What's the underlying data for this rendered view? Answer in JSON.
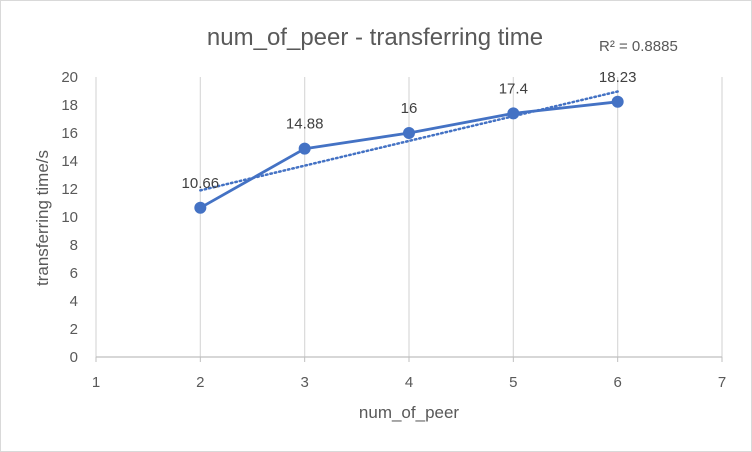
{
  "chart_data": {
    "type": "line",
    "title": "num_of_peer - transferring time",
    "xlabel": "num_of_peer",
    "ylabel": "transferring time/s",
    "xlim": [
      1,
      7
    ],
    "ylim": [
      0,
      20
    ],
    "x_ticks": [
      1,
      2,
      3,
      4,
      5,
      6,
      7
    ],
    "y_ticks": [
      0,
      2,
      4,
      6,
      8,
      10,
      12,
      14,
      16,
      18,
      20
    ],
    "grid": "vertical",
    "legend": "none",
    "series": [
      {
        "x": [
          2,
          3,
          4,
          5,
          6
        ],
        "values": [
          10.66,
          14.88,
          16,
          17.4,
          18.23
        ],
        "data_labels": [
          "10.66",
          "14.88",
          "16",
          "17.4",
          "18.23"
        ],
        "color": "#4472c4",
        "markers": true
      }
    ],
    "trendline": {
      "type": "linear",
      "style": "dotted",
      "color": "#4472c4",
      "r_squared_label": "R² = 0.8885"
    }
  }
}
